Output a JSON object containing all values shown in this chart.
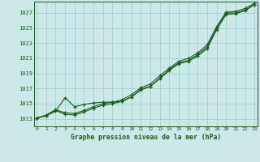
{
  "title": "Graphe pression niveau de la mer (hPa)",
  "background_color": "#cce8e8",
  "grid_color": "#99cccc",
  "line_color": "#1a5c1a",
  "yticks": [
    1013,
    1015,
    1017,
    1019,
    1021,
    1023,
    1025,
    1027
  ],
  "ylim": [
    1012.0,
    1028.5
  ],
  "xlim": [
    -0.3,
    23.3
  ],
  "line1_x": [
    0,
    1,
    2,
    3,
    4,
    5,
    6,
    7,
    8,
    9,
    10,
    11,
    12,
    13,
    14,
    15,
    16,
    17,
    18,
    19,
    20,
    21,
    22,
    23
  ],
  "line1": [
    1013.1,
    1013.4,
    1014.0,
    1015.8,
    1014.6,
    1014.9,
    1015.1,
    1015.2,
    1015.2,
    1015.3,
    1015.9,
    1016.9,
    1017.3,
    1018.3,
    1019.4,
    1020.3,
    1020.6,
    1021.3,
    1022.3,
    1024.8,
    1026.8,
    1026.9,
    1027.3,
    1028.1
  ],
  "line2_x": [
    0,
    1,
    2,
    3,
    4,
    5,
    6,
    7,
    8,
    9,
    10,
    11,
    12,
    13,
    14,
    15,
    16,
    17,
    18,
    19,
    20,
    21,
    22,
    23
  ],
  "line2": [
    1013.1,
    1013.4,
    1014.1,
    1013.6,
    1013.5,
    1013.9,
    1014.4,
    1014.8,
    1015.0,
    1015.3,
    1015.9,
    1016.8,
    1017.3,
    1018.4,
    1019.5,
    1020.4,
    1020.7,
    1021.5,
    1022.5,
    1025.0,
    1027.0,
    1027.0,
    1027.4,
    1028.1
  ],
  "line3_x": [
    0,
    1,
    2,
    3,
    4,
    5,
    6,
    7,
    8,
    9,
    10,
    11,
    12,
    13,
    14,
    15,
    16,
    17,
    18,
    19,
    20,
    21,
    22,
    23
  ],
  "line3": [
    1013.1,
    1013.5,
    1014.2,
    1013.8,
    1013.7,
    1014.1,
    1014.6,
    1015.0,
    1015.2,
    1015.5,
    1016.2,
    1017.1,
    1017.6,
    1018.7,
    1019.7,
    1020.6,
    1021.0,
    1021.7,
    1022.8,
    1025.2,
    1027.1,
    1027.2,
    1027.6,
    1028.3
  ]
}
